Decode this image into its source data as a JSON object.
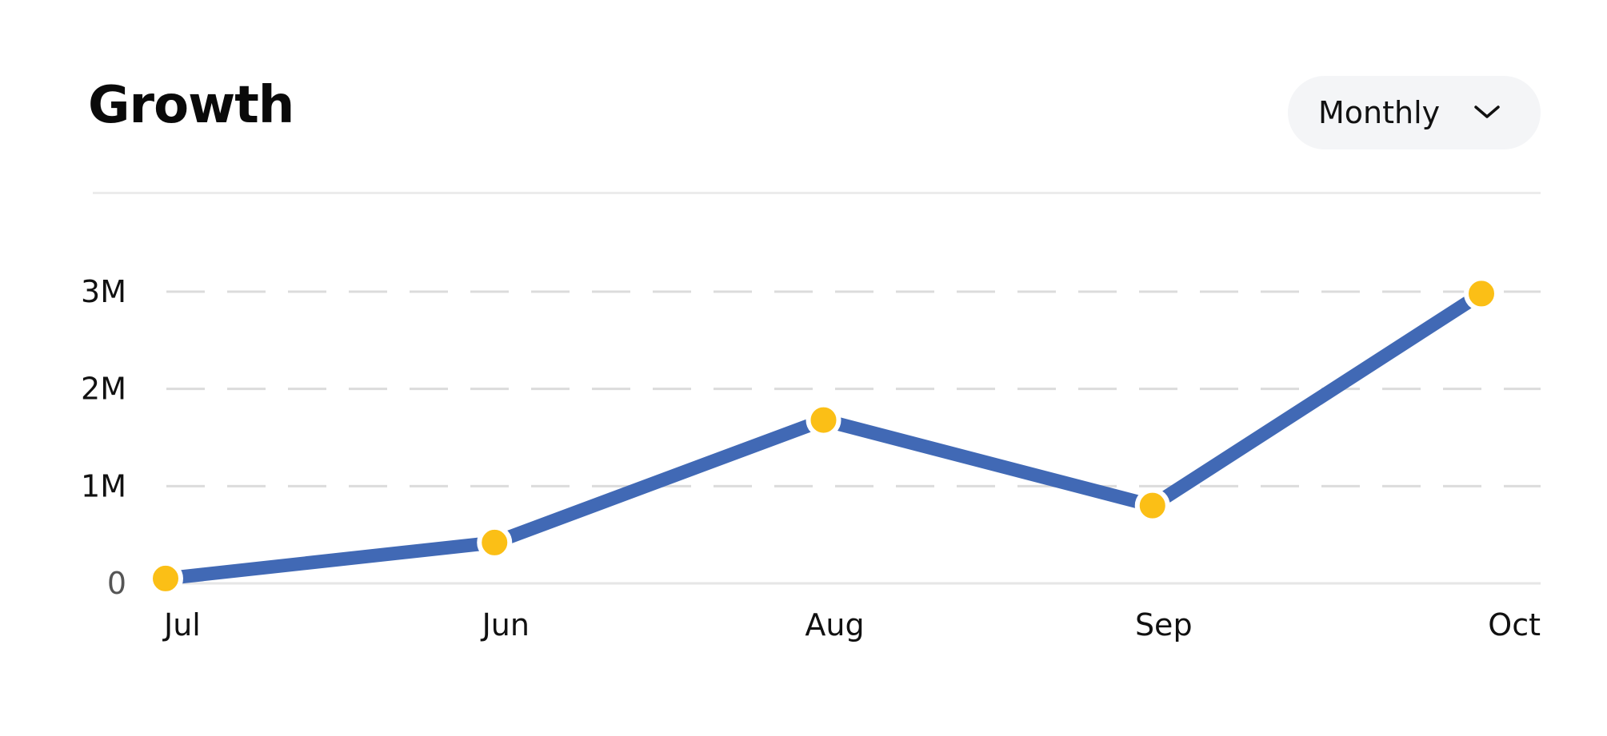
{
  "header": {
    "title": "Growth",
    "period_select": {
      "value": "Monthly",
      "icon": "chevron-down-icon"
    }
  },
  "colors": {
    "line": "#4169b5",
    "point": "#fbbf16",
    "point_outline": "#ffffff",
    "grid": "#dcdcdc",
    "baseline": "#e6e6e6",
    "text": "#111111"
  },
  "chart_data": {
    "type": "line",
    "title": "Growth",
    "xlabel": "",
    "ylabel": "",
    "categories": [
      "Jul",
      "Jun",
      "Aug",
      "Sep",
      "Oct"
    ],
    "series": [
      {
        "values": [
          50000,
          420000,
          1680000,
          800000,
          2980000
        ]
      }
    ],
    "y_ticks": [
      {
        "value": 0,
        "label": "0"
      },
      {
        "value": 1000000,
        "label": "1M"
      },
      {
        "value": 2000000,
        "label": "2M"
      },
      {
        "value": 3000000,
        "label": "3M"
      }
    ],
    "ylim": [
      0,
      3000000
    ],
    "grid": true,
    "grid_style": "dashed",
    "legend": false
  }
}
